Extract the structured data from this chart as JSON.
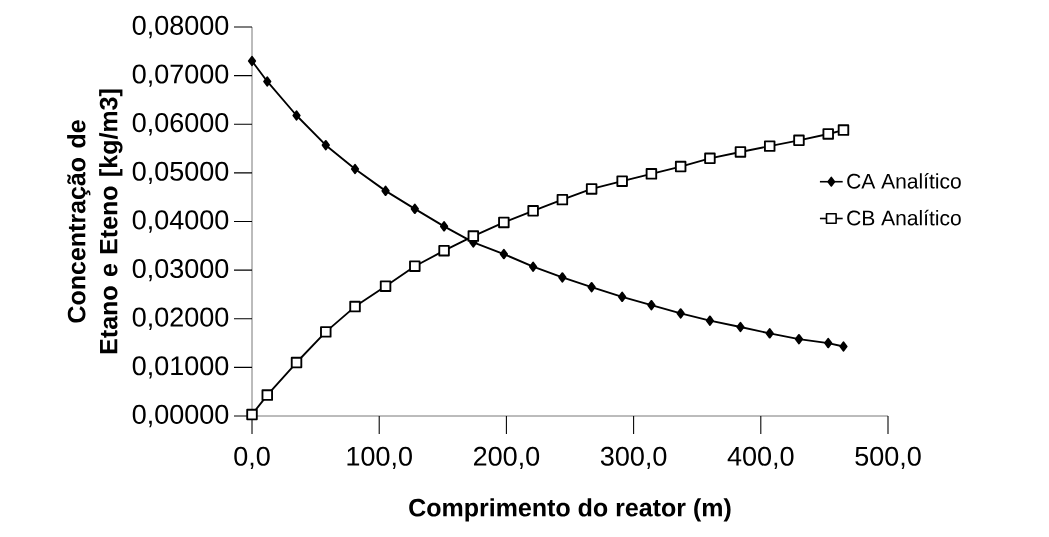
{
  "chart_data": {
    "type": "line",
    "xlabel": "Comprimento do reator (m)",
    "ylabel": "Concentração de Etano e Eteno [kg/m3]",
    "x": [
      0,
      12,
      35,
      58,
      81,
      105,
      128,
      151,
      174,
      198,
      221,
      244,
      267,
      291,
      314,
      337,
      360,
      384,
      407,
      430,
      453,
      465
    ],
    "series": [
      {
        "name": "CA Analítico",
        "color": "#000000",
        "marker": "diamond",
        "values": [
          0.073,
          0.0688,
          0.0618,
          0.0557,
          0.0508,
          0.0463,
          0.0426,
          0.039,
          0.0357,
          0.0333,
          0.0307,
          0.0285,
          0.0265,
          0.0245,
          0.0228,
          0.0211,
          0.0196,
          0.0183,
          0.017,
          0.0158,
          0.015,
          0.0143
        ]
      },
      {
        "name": "CB Analítico",
        "color": "#000000",
        "marker": "square",
        "values": [
          0.0003,
          0.0043,
          0.011,
          0.0173,
          0.0225,
          0.0267,
          0.0308,
          0.034,
          0.037,
          0.0398,
          0.0422,
          0.0445,
          0.0467,
          0.0483,
          0.0498,
          0.0513,
          0.053,
          0.0543,
          0.0555,
          0.0567,
          0.058,
          0.0588
        ]
      }
    ],
    "xlim": [
      0,
      500
    ],
    "xticks": [
      {
        "value": 0,
        "label": "0,0"
      },
      {
        "value": 100,
        "label": "100,0"
      },
      {
        "value": 200,
        "label": "200,0"
      },
      {
        "value": 300,
        "label": "300,0"
      },
      {
        "value": 400,
        "label": "400,0"
      },
      {
        "value": 500,
        "label": "500,0"
      }
    ],
    "ylim": [
      0,
      0.08
    ],
    "yticks": [
      {
        "value": 0,
        "label": "0,00000"
      },
      {
        "value": 0.01,
        "label": "0,01000"
      },
      {
        "value": 0.02,
        "label": "0,02000"
      },
      {
        "value": 0.03,
        "label": "0,03000"
      },
      {
        "value": 0.04,
        "label": "0,04000"
      },
      {
        "value": 0.05,
        "label": "0,05000"
      },
      {
        "value": 0.06,
        "label": "0,06000"
      },
      {
        "value": 0.07,
        "label": "0,07000"
      },
      {
        "value": 0.08,
        "label": "0,08000"
      }
    ],
    "grid": false,
    "legend": "right",
    "line_style": "solid"
  }
}
